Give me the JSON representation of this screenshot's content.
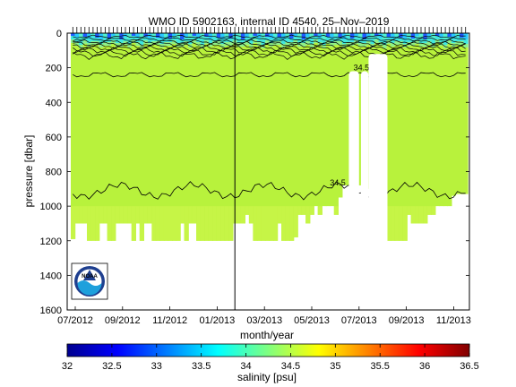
{
  "chart_data": {
    "type": "heatmap",
    "title": "WMO ID 5902163, internal ID 4540, 25–Nov–2019",
    "xlabel": "month/year",
    "ylabel": "pressure [dbar]",
    "x_tick_labels": [
      "07/2012",
      "09/2012",
      "11/2012",
      "01/2013",
      "03/2013",
      "05/2013",
      "07/2013",
      "09/2013",
      "11/2013"
    ],
    "y_ticks": [
      0,
      200,
      400,
      600,
      800,
      1000,
      1200,
      1400,
      1600
    ],
    "ylim": [
      1600,
      0
    ],
    "y_reversed": true,
    "colorbar": {
      "label": "salinity [psu]",
      "ticks": [
        "32",
        "32.5",
        "33",
        "33.5",
        "34",
        "34.5",
        "35",
        "35.5",
        "36",
        "36.5"
      ],
      "range": [
        32,
        36.5
      ],
      "colormap": "jet"
    },
    "contour_labels": [
      {
        "text": "34.5",
        "pressure": 195,
        "month_index": 12.1
      },
      {
        "text": "34.5",
        "pressure": 860,
        "month_index": 11.1
      }
    ],
    "field": {
      "dominant_value": 34.4,
      "dominant_color": "#b8f23c",
      "deep_color": "#c6f546",
      "surface_colors": [
        "#1e5aff",
        "#28c8ff",
        "#50f0d0"
      ],
      "profile_depths": [
        1190,
        1100,
        1100,
        1100,
        1200,
        1200,
        1200,
        1100,
        1100,
        1200,
        1200,
        1100,
        1100,
        1100,
        1100,
        1200,
        1100,
        1200,
        1100,
        1100,
        1200,
        1200,
        1200,
        1200,
        1200,
        1200,
        1200,
        1100,
        1200,
        1100,
        1100,
        1200,
        1200,
        1200,
        1200,
        1200,
        1200,
        1200,
        1200,
        1200,
        1100,
        1100,
        1100,
        1050,
        1100,
        1200,
        1200,
        1200,
        1200,
        1200,
        1200,
        1100,
        1200,
        1200,
        1200,
        1180,
        1050,
        1050,
        1100,
        1050,
        1000,
        1050,
        1000,
        1000,
        1000,
        1050,
        950,
        880,
        880,
        880,
        880,
        880,
        880,
        900,
        950,
        900,
        1050,
        900,
        1200,
        1200,
        1200,
        1200,
        1200,
        1050,
        1100,
        1100,
        1100,
        1100,
        1050,
        1050,
        1000,
        1000,
        1000,
        1000,
        940,
        930,
        930,
        930
      ]
    },
    "gaps": [
      {
        "start": 11.57,
        "end": 12.0,
        "pressure": 220
      },
      {
        "start": 12.08,
        "end": 12.4,
        "pressure": 220
      },
      {
        "start": 12.4,
        "end": 13.2,
        "pressure": 120
      }
    ],
    "marker_line_month_index": 6.75,
    "grid": false,
    "legend": "none"
  },
  "logo": {
    "text": "NOAA"
  }
}
